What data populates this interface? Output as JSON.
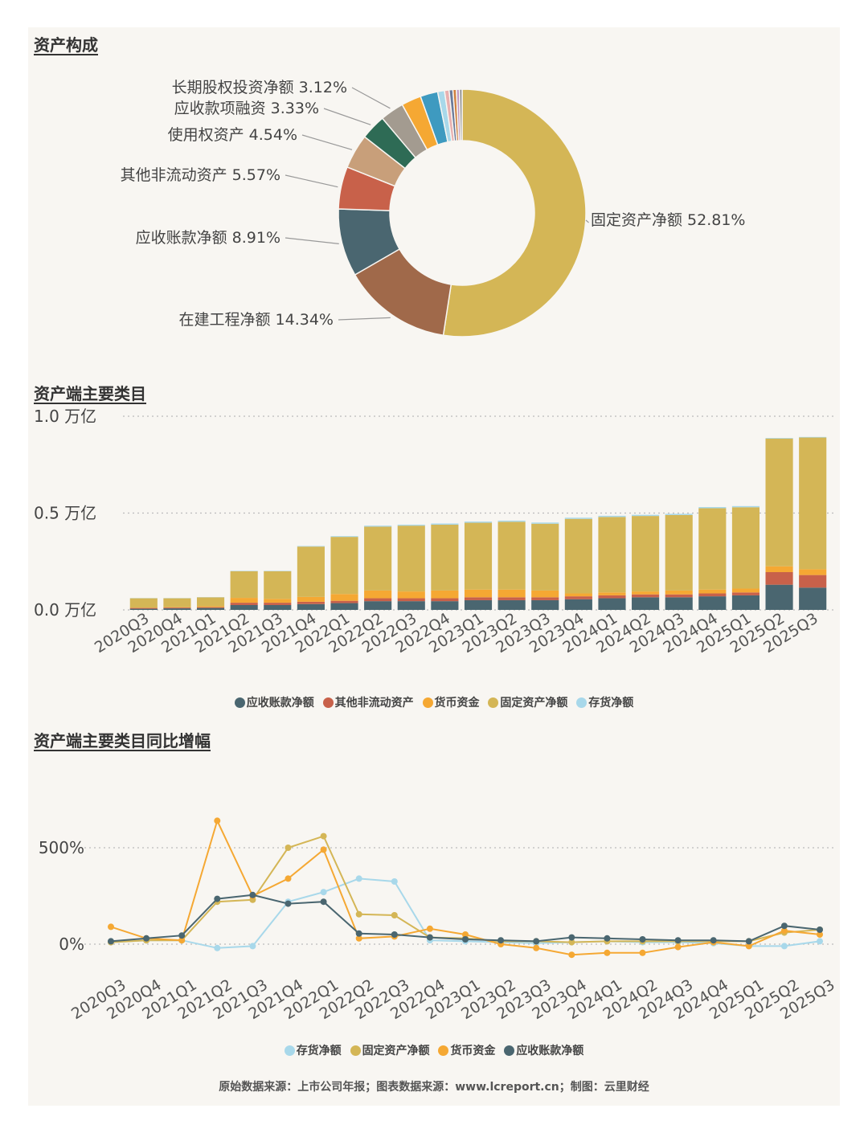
{
  "colors": {
    "receivable": "#4a6670",
    "other_noncurrent": "#c8614a",
    "cash": "#f5a833",
    "fixed_assets": "#d4b656",
    "inventory": "#a8d8ea",
    "construction": "#a0694a",
    "right_of_use": "#c89f7a",
    "notes_financing": "#2e6b55",
    "lt_equity": "#a39b90",
    "grid": "#bbbbbb",
    "text": "#444444"
  },
  "chart_data": [
    {
      "type": "pie",
      "title": "资产构成",
      "slices": [
        {
          "label": "固定资产净额",
          "pct_text": "52.81%",
          "value": 52.81,
          "color": "#d4b656"
        },
        {
          "label": "在建工程净额",
          "pct_text": "14.34%",
          "value": 14.34,
          "color": "#a0694a"
        },
        {
          "label": "应收账款净额",
          "pct_text": "8.91%",
          "value": 8.91,
          "color": "#4a6670"
        },
        {
          "label": "其他非流动资产",
          "pct_text": "5.57%",
          "value": 5.57,
          "color": "#c8614a"
        },
        {
          "label": "使用权资产",
          "pct_text": "4.54%",
          "value": 4.54,
          "color": "#c89f7a"
        },
        {
          "label": "应收款项融资",
          "pct_text": "3.33%",
          "value": 3.33,
          "color": "#2e6b55"
        },
        {
          "label": "长期股权投资净额",
          "pct_text": "3.12%",
          "value": 3.12,
          "color": "#a39b90"
        },
        {
          "label": "",
          "pct_text": "",
          "value": 2.6,
          "color": "#f5a833"
        },
        {
          "label": "",
          "pct_text": "",
          "value": 2.3,
          "color": "#3e9ac0"
        },
        {
          "label": "",
          "pct_text": "",
          "value": 0.9,
          "color": "#a8d8ea"
        },
        {
          "label": "",
          "pct_text": "",
          "value": 0.6,
          "color": "#e8b0b0"
        },
        {
          "label": "",
          "pct_text": "",
          "value": 0.5,
          "color": "#6a7a9a"
        },
        {
          "label": "",
          "pct_text": "",
          "value": 0.45,
          "color": "#d08040"
        },
        {
          "label": "",
          "pct_text": "",
          "value": 0.4,
          "color": "#c09ac0"
        },
        {
          "label": "",
          "pct_text": "",
          "value": 0.35,
          "color": "#8a8a8a"
        }
      ]
    },
    {
      "type": "bar",
      "stacked": true,
      "title": "资产端主要类目",
      "unit": "万亿",
      "ylim": [
        0,
        1.0
      ],
      "yticks": [
        0.0,
        0.5,
        1.0
      ],
      "ytick_labels": [
        "0.0 万亿",
        "0.5 万亿",
        "1.0 万亿"
      ],
      "categories": [
        "2020Q3",
        "2020Q4",
        "2021Q1",
        "2021Q2",
        "2021Q3",
        "2021Q4",
        "2022Q1",
        "2022Q2",
        "2022Q3",
        "2022Q4",
        "2023Q1",
        "2023Q2",
        "2023Q3",
        "2023Q4",
        "2024Q1",
        "2024Q2",
        "2024Q3",
        "2024Q4",
        "2025Q1",
        "2025Q2",
        "2025Q3"
      ],
      "series": [
        {
          "name": "应收账款净额",
          "color": "#4a6670",
          "values": [
            0.006,
            0.008,
            0.01,
            0.025,
            0.025,
            0.03,
            0.035,
            0.045,
            0.045,
            0.045,
            0.05,
            0.05,
            0.05,
            0.055,
            0.06,
            0.065,
            0.065,
            0.07,
            0.075,
            0.13,
            0.115
          ]
        },
        {
          "name": "其他非流动资产",
          "color": "#c8614a",
          "values": [
            0.004,
            0.004,
            0.004,
            0.012,
            0.012,
            0.012,
            0.012,
            0.015,
            0.015,
            0.015,
            0.015,
            0.015,
            0.015,
            0.015,
            0.015,
            0.015,
            0.015,
            0.015,
            0.015,
            0.065,
            0.065
          ]
        },
        {
          "name": "货币资金",
          "color": "#f5a833",
          "values": [
            0.002,
            0.002,
            0.005,
            0.025,
            0.02,
            0.025,
            0.035,
            0.04,
            0.035,
            0.04,
            0.04,
            0.04,
            0.035,
            0.015,
            0.015,
            0.015,
            0.02,
            0.02,
            0.02,
            0.03,
            0.03
          ]
        },
        {
          "name": "固定资产净额",
          "color": "#d4b656",
          "values": [
            0.048,
            0.046,
            0.046,
            0.138,
            0.143,
            0.26,
            0.295,
            0.33,
            0.34,
            0.34,
            0.345,
            0.35,
            0.345,
            0.385,
            0.39,
            0.39,
            0.39,
            0.42,
            0.42,
            0.66,
            0.68
          ]
        },
        {
          "name": "存货净额",
          "color": "#a8d8ea",
          "values": [
            0.001,
            0.001,
            0.001,
            0.002,
            0.002,
            0.003,
            0.004,
            0.005,
            0.005,
            0.006,
            0.006,
            0.006,
            0.006,
            0.006,
            0.006,
            0.006,
            0.006,
            0.006,
            0.006,
            0.003,
            0.003
          ]
        }
      ]
    },
    {
      "type": "line",
      "title": "资产端主要类目同比增幅",
      "ylim": [
        -50,
        650
      ],
      "yticks": [
        0,
        500
      ],
      "ytick_labels": [
        "0%",
        "500%"
      ],
      "categories": [
        "2020Q3",
        "2020Q4",
        "2021Q1",
        "2021Q2",
        "2021Q3",
        "2021Q4",
        "2022Q1",
        "2022Q2",
        "2022Q3",
        "2022Q4",
        "2023Q1",
        "2023Q2",
        "2023Q3",
        "2023Q4",
        "2024Q1",
        "2024Q2",
        "2024Q3",
        "2024Q4",
        "2025Q1",
        "2025Q2",
        "2025Q3"
      ],
      "series": [
        {
          "name": "存货净额",
          "color": "#a8d8ea",
          "values": [
            10,
            20,
            20,
            -20,
            -10,
            220,
            270,
            340,
            325,
            20,
            15,
            10,
            5,
            10,
            15,
            10,
            10,
            5,
            -10,
            -10,
            15
          ]
        },
        {
          "name": "固定资产净额",
          "color": "#d4b656",
          "values": [
            10,
            20,
            20,
            220,
            230,
            500,
            560,
            155,
            150,
            35,
            30,
            15,
            15,
            10,
            15,
            15,
            15,
            15,
            15,
            60,
            75
          ]
        },
        {
          "name": "货币资金",
          "color": "#f5a833",
          "values": [
            90,
            30,
            20,
            640,
            250,
            340,
            490,
            30,
            40,
            80,
            50,
            0,
            -20,
            -55,
            -45,
            -45,
            -15,
            10,
            -10,
            70,
            50
          ]
        },
        {
          "name": "应收账款净额",
          "color": "#4a6670",
          "values": [
            15,
            30,
            45,
            235,
            255,
            210,
            220,
            55,
            50,
            35,
            25,
            20,
            15,
            35,
            30,
            25,
            20,
            20,
            15,
            95,
            75
          ]
        }
      ]
    }
  ],
  "footer": {
    "text": "原始数据来源：上市公司年报；图表数据来源：www.lcreport.cn；制图：云里财经"
  }
}
